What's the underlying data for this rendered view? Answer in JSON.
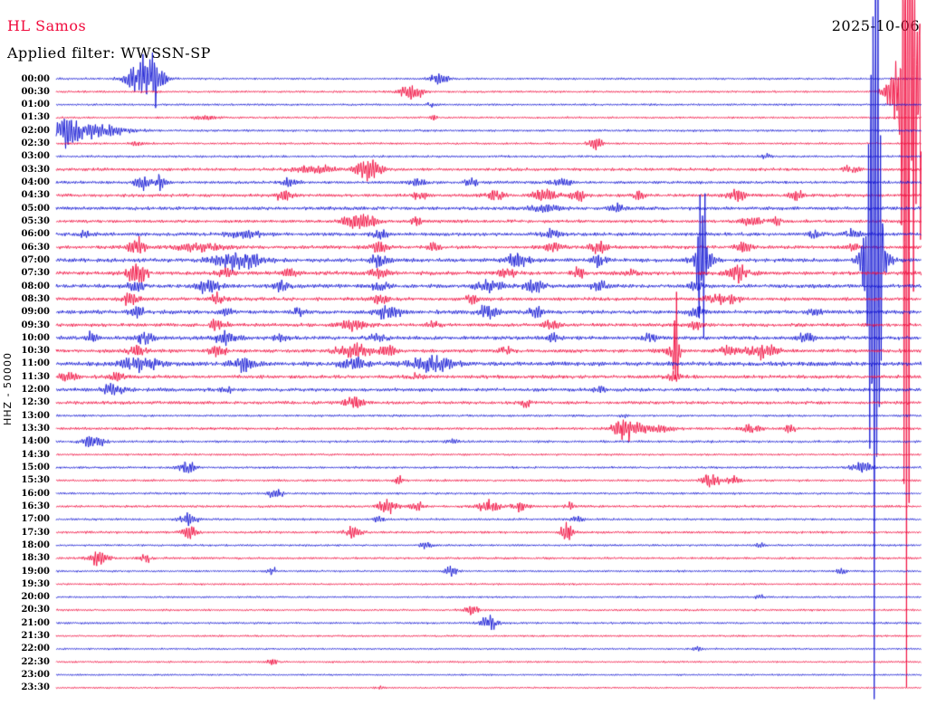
{
  "header": {
    "station": "HL Samos",
    "filter_label": "Applied filter: WWSSN-SP",
    "date": "2025-10-06"
  },
  "axis": {
    "left_label": "HHZ - 50000"
  },
  "colors": {
    "trace_red": "#f00a3c",
    "trace_blue": "#1114d2",
    "text": "#000000",
    "background": "#ffffff"
  },
  "chart_data": {
    "type": "line",
    "subtype": "helicorder-seismogram",
    "title": "HL Samos",
    "filter": "WWSSN-SP",
    "date": "2025-10-06",
    "minutes_per_line": 30,
    "legend": "none",
    "grid": false,
    "event_fields": [
      "minute_offset",
      "amplitude_px",
      "width_minutes"
    ],
    "rows": [
      {
        "label": "00:00",
        "color": "blue",
        "noise": 1.2,
        "events": [
          [
            3.1,
            30,
            0.38
          ],
          [
            3.5,
            14,
            0.15
          ],
          [
            13.3,
            7,
            0.2
          ]
        ]
      },
      {
        "label": "00:30",
        "color": "red",
        "noise": 1.2,
        "events": [
          [
            12.3,
            9,
            0.3
          ],
          [
            29.4,
            60,
            0.35
          ],
          [
            29.6,
            100,
            0.18
          ],
          [
            29.5,
            650,
            0.1
          ],
          [
            30,
            200,
            0.15
          ]
        ]
      },
      {
        "label": "01:00",
        "color": "blue",
        "noise": 1.2,
        "events": [
          [
            13,
            3,
            0.1
          ]
        ]
      },
      {
        "label": "01:30",
        "color": "red",
        "noise": 1.2,
        "events": [
          [
            5.2,
            3,
            0.3
          ],
          [
            13.1,
            4,
            0.07
          ]
        ]
      },
      {
        "label": "02:00",
        "color": "blue",
        "noise": 1.3,
        "events": [
          [
            0.3,
            16,
            0.4
          ],
          [
            1.4,
            7,
            0.7
          ]
        ]
      },
      {
        "label": "02:30",
        "color": "red",
        "noise": 1.2,
        "events": [
          [
            2.8,
            3,
            0.15
          ],
          [
            18.7,
            9,
            0.16
          ]
        ]
      },
      {
        "label": "03:00",
        "color": "blue",
        "noise": 1.3,
        "events": [
          [
            24.6,
            3,
            0.15
          ]
        ]
      },
      {
        "label": "03:30",
        "color": "red",
        "noise": 1.7,
        "events": [
          [
            9,
            5,
            0.5
          ],
          [
            10.8,
            13,
            0.3
          ],
          [
            27.6,
            4,
            0.25
          ]
        ]
      },
      {
        "label": "04:00",
        "color": "blue",
        "noise": 1.7,
        "events": [
          [
            3,
            11,
            0.16
          ],
          [
            3.6,
            9,
            0.13
          ],
          [
            8.1,
            6,
            0.2
          ],
          [
            12.5,
            5,
            0.2
          ],
          [
            14.4,
            5,
            0.16
          ],
          [
            17.5,
            4,
            0.25
          ]
        ]
      },
      {
        "label": "04:30",
        "color": "red",
        "noise": 1.8,
        "events": [
          [
            7.9,
            7,
            0.2
          ],
          [
            12.6,
            6,
            0.16
          ],
          [
            15.2,
            6,
            0.25
          ],
          [
            16.9,
            7,
            0.3
          ],
          [
            18.1,
            6,
            0.2
          ],
          [
            20.2,
            5,
            0.13
          ],
          [
            23.6,
            7,
            0.25
          ],
          [
            25.7,
            6,
            0.16
          ]
        ]
      },
      {
        "label": "05:00",
        "color": "blue",
        "noise": 2,
        "events": [
          [
            16.9,
            5,
            0.3
          ],
          [
            19.4,
            4,
            0.2
          ]
        ]
      },
      {
        "label": "05:30",
        "color": "red",
        "noise": 1.8,
        "events": [
          [
            10.3,
            10,
            0.25
          ],
          [
            10.9,
            8,
            0.2
          ],
          [
            12.5,
            5,
            0.16
          ],
          [
            24.1,
            6,
            0.25
          ],
          [
            24.9,
            5,
            0.16
          ]
        ]
      },
      {
        "label": "06:00",
        "color": "blue",
        "noise": 2,
        "events": [
          [
            1,
            5,
            0.16
          ],
          [
            6.6,
            4,
            0.5
          ],
          [
            11.2,
            5,
            0.2
          ],
          [
            17.2,
            5,
            0.2
          ],
          [
            26.3,
            4,
            0.16
          ],
          [
            27.6,
            5,
            0.2
          ]
        ]
      },
      {
        "label": "06:30",
        "color": "red",
        "noise": 2,
        "events": [
          [
            2.8,
            10,
            0.2
          ],
          [
            5,
            6,
            0.5
          ],
          [
            11.2,
            6,
            0.2
          ],
          [
            13.1,
            5,
            0.16
          ],
          [
            17.2,
            6,
            0.2
          ],
          [
            18.8,
            7,
            0.2
          ],
          [
            23.8,
            6,
            0.2
          ],
          [
            27.6,
            5,
            0.16
          ]
        ]
      },
      {
        "label": "07:00",
        "color": "blue",
        "noise": 2.2,
        "events": [
          [
            6.3,
            12,
            0.55
          ],
          [
            11.2,
            8,
            0.2
          ],
          [
            16,
            9,
            0.3
          ],
          [
            18.8,
            7,
            0.2
          ],
          [
            22.4,
            20,
            0.25
          ],
          [
            22.4,
            170,
            0.08
          ],
          [
            28.2,
            120,
            0.15
          ],
          [
            28.4,
            35,
            0.3
          ],
          [
            28.4,
            500,
            0.12
          ]
        ]
      },
      {
        "label": "07:30",
        "color": "red",
        "noise": 2.2,
        "events": [
          [
            2.8,
            15,
            0.22
          ],
          [
            5.9,
            6,
            0.2
          ],
          [
            8.1,
            5,
            0.16
          ],
          [
            11.2,
            6,
            0.2
          ],
          [
            15.6,
            6,
            0.2
          ],
          [
            18.1,
            5,
            0.16
          ],
          [
            20,
            5,
            0.16
          ],
          [
            23.6,
            10,
            0.25
          ]
        ]
      },
      {
        "label": "08:00",
        "color": "blue",
        "noise": 2.2,
        "events": [
          [
            2.8,
            6,
            0.2
          ],
          [
            5.3,
            8,
            0.3
          ],
          [
            7.8,
            6,
            0.2
          ],
          [
            11.2,
            6,
            0.2
          ],
          [
            15,
            8,
            0.3
          ],
          [
            16.6,
            8,
            0.25
          ],
          [
            18.8,
            6,
            0.2
          ],
          [
            22.2,
            5,
            0.16
          ]
        ]
      },
      {
        "label": "08:30",
        "color": "red",
        "noise": 2,
        "events": [
          [
            2.6,
            8,
            0.2
          ],
          [
            5.6,
            6,
            0.2
          ],
          [
            11.2,
            6,
            0.2
          ],
          [
            14.4,
            5,
            0.16
          ],
          [
            22.8,
            8,
            0.2
          ],
          [
            23.5,
            6,
            0.16
          ]
        ]
      },
      {
        "label": "09:00",
        "color": "blue",
        "noise": 2.2,
        "events": [
          [
            2.8,
            6,
            0.2
          ],
          [
            5.9,
            5,
            0.16
          ],
          [
            8.4,
            5,
            0.16
          ],
          [
            11.5,
            8,
            0.3
          ],
          [
            15,
            8,
            0.25
          ],
          [
            16.6,
            6,
            0.2
          ],
          [
            22.2,
            6,
            0.2
          ],
          [
            26.3,
            4,
            0.16
          ]
        ]
      },
      {
        "label": "09:30",
        "color": "red",
        "noise": 2,
        "events": [
          [
            5.6,
            9,
            0.2
          ],
          [
            10.3,
            8,
            0.3
          ],
          [
            13.1,
            5,
            0.16
          ],
          [
            17.2,
            6,
            0.2
          ],
          [
            22.2,
            5,
            0.16
          ]
        ]
      },
      {
        "label": "10:00",
        "color": "blue",
        "noise": 2.2,
        "events": [
          [
            1.2,
            5,
            0.16
          ],
          [
            3.1,
            8,
            0.2
          ],
          [
            5.9,
            7,
            0.25
          ],
          [
            7.8,
            5,
            0.16
          ],
          [
            11.2,
            6,
            0.2
          ],
          [
            17.2,
            6,
            0.13
          ],
          [
            20.6,
            5,
            0.16
          ],
          [
            26,
            7,
            0.2
          ]
        ]
      },
      {
        "label": "10:30",
        "color": "red",
        "noise": 2,
        "events": [
          [
            2.8,
            6,
            0.2
          ],
          [
            5.6,
            7,
            0.2
          ],
          [
            10.3,
            9,
            0.38
          ],
          [
            11.5,
            7,
            0.2
          ],
          [
            15.6,
            5,
            0.16
          ],
          [
            21.3,
            6,
            0.2
          ],
          [
            21.5,
            80,
            0.06
          ],
          [
            23.2,
            6,
            0.2
          ],
          [
            24.4,
            9,
            0.38
          ]
        ]
      },
      {
        "label": "11:00",
        "color": "blue",
        "noise": 2.5,
        "events": [
          [
            2.9,
            10,
            0.45
          ],
          [
            6.5,
            8,
            0.3
          ],
          [
            10.3,
            8,
            0.3
          ],
          [
            13.1,
            10,
            0.5
          ]
        ]
      },
      {
        "label": "11:30",
        "color": "red",
        "noise": 2,
        "events": [
          [
            0.4,
            6,
            0.2
          ],
          [
            2.1,
            5,
            0.16
          ],
          [
            12.5,
            4,
            0.16
          ],
          [
            21.4,
            5,
            0.16
          ]
        ]
      },
      {
        "label": "12:00",
        "color": "blue",
        "noise": 2,
        "events": [
          [
            2,
            8,
            0.25
          ],
          [
            5.9,
            4,
            0.16
          ],
          [
            18.8,
            5,
            0.13
          ]
        ]
      },
      {
        "label": "12:30",
        "color": "red",
        "noise": 1.8,
        "events": [
          [
            10.3,
            7,
            0.25
          ],
          [
            16.3,
            6,
            0.13
          ]
        ]
      },
      {
        "label": "13:00",
        "color": "blue",
        "noise": 1.3,
        "events": [
          [
            19.7,
            3,
            0.1
          ]
        ]
      },
      {
        "label": "13:30",
        "color": "red",
        "noise": 1.5,
        "events": [
          [
            19.7,
            14,
            0.25
          ],
          [
            20.6,
            6,
            0.45
          ],
          [
            24.1,
            5,
            0.25
          ],
          [
            25.4,
            4,
            0.16
          ]
        ]
      },
      {
        "label": "14:00",
        "color": "blue",
        "noise": 1.4,
        "events": [
          [
            1.3,
            8,
            0.25
          ],
          [
            13.7,
            3,
            0.13
          ]
        ]
      },
      {
        "label": "14:30",
        "color": "red",
        "noise": 1.2,
        "events": []
      },
      {
        "label": "15:00",
        "color": "blue",
        "noise": 1.3,
        "events": [
          [
            4.5,
            9,
            0.2
          ],
          [
            27.9,
            7,
            0.25
          ]
        ]
      },
      {
        "label": "15:30",
        "color": "red",
        "noise": 1.3,
        "events": [
          [
            11.9,
            4,
            0.13
          ],
          [
            22.7,
            11,
            0.2
          ],
          [
            23.5,
            5,
            0.16
          ]
        ]
      },
      {
        "label": "16:00",
        "color": "blue",
        "noise": 1.3,
        "events": [
          [
            7.6,
            6,
            0.16
          ]
        ]
      },
      {
        "label": "16:30",
        "color": "red",
        "noise": 1.4,
        "events": [
          [
            11.5,
            7,
            0.25
          ],
          [
            12.5,
            6,
            0.16
          ],
          [
            15,
            8,
            0.25
          ],
          [
            16.1,
            6,
            0.2
          ],
          [
            17.8,
            4,
            0.13
          ]
        ]
      },
      {
        "label": "17:00",
        "color": "blue",
        "noise": 1.3,
        "events": [
          [
            4.6,
            7,
            0.2
          ],
          [
            11.2,
            4,
            0.13
          ],
          [
            18.1,
            4,
            0.13
          ]
        ]
      },
      {
        "label": "17:30",
        "color": "red",
        "noise": 1.4,
        "events": [
          [
            4.6,
            8,
            0.2
          ],
          [
            10.3,
            7,
            0.2
          ],
          [
            17.7,
            16,
            0.13
          ]
        ]
      },
      {
        "label": "18:00",
        "color": "blue",
        "noise": 1.2,
        "events": [
          [
            12.8,
            4,
            0.13
          ],
          [
            24.4,
            3,
            0.1
          ]
        ]
      },
      {
        "label": "18:30",
        "color": "red",
        "noise": 1.3,
        "events": [
          [
            1.5,
            8,
            0.25
          ],
          [
            3.1,
            5,
            0.16
          ]
        ]
      },
      {
        "label": "19:00",
        "color": "blue",
        "noise": 1.2,
        "events": [
          [
            7.5,
            4,
            0.13
          ],
          [
            13.7,
            5,
            0.16
          ],
          [
            27.2,
            4,
            0.13
          ]
        ]
      },
      {
        "label": "19:30",
        "color": "red",
        "noise": 1.1,
        "events": []
      },
      {
        "label": "20:00",
        "color": "blue",
        "noise": 1.1,
        "events": [
          [
            24.4,
            3,
            0.1
          ]
        ]
      },
      {
        "label": "20:30",
        "color": "red",
        "noise": 1.2,
        "events": [
          [
            14.4,
            6,
            0.16
          ]
        ]
      },
      {
        "label": "21:00",
        "color": "blue",
        "noise": 1.2,
        "events": [
          [
            15,
            9,
            0.2
          ]
        ]
      },
      {
        "label": "21:30",
        "color": "red",
        "noise": 1.1,
        "events": []
      },
      {
        "label": "22:00",
        "color": "blue",
        "noise": 1.1,
        "events": [
          [
            22.2,
            3,
            0.1
          ]
        ]
      },
      {
        "label": "22:30",
        "color": "red",
        "noise": 1.1,
        "events": [
          [
            7.5,
            4,
            0.13
          ]
        ]
      },
      {
        "label": "23:00",
        "color": "blue",
        "noise": 1,
        "events": []
      },
      {
        "label": "23:30",
        "color": "red",
        "noise": 1,
        "events": [
          [
            11.2,
            2,
            0.1
          ]
        ]
      }
    ]
  }
}
